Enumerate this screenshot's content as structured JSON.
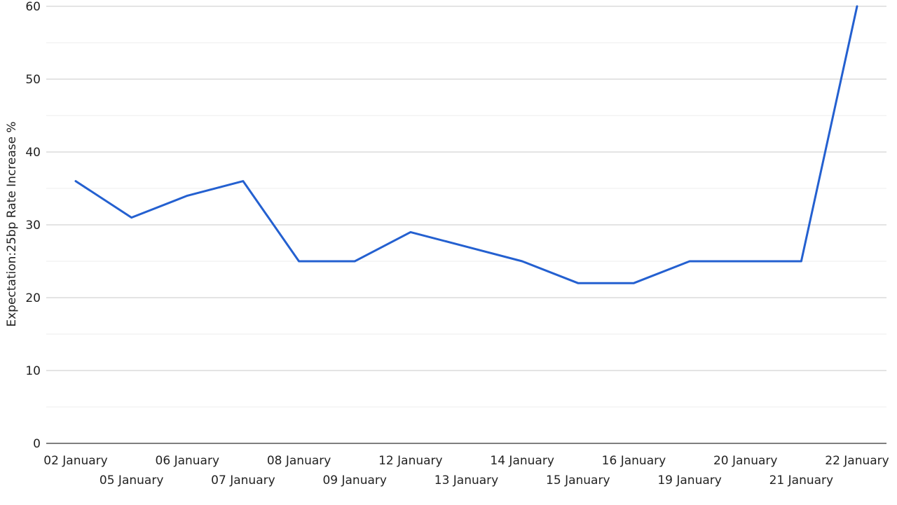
{
  "chart_data": {
    "type": "line",
    "title": "",
    "xlabel": "",
    "ylabel": "Expectation:25bp Rate Increase %",
    "ylim": [
      0,
      60
    ],
    "yticks": [
      "0",
      "10",
      "20",
      "30",
      "40",
      "50",
      "60"
    ],
    "grid": true,
    "categories": [
      "02 January",
      "05 January",
      "06 January",
      "07 January",
      "08 January",
      "09 January",
      "12 January",
      "13 January",
      "14 January",
      "15 January",
      "16 January",
      "19 January",
      "20 January",
      "21 January",
      "22 January"
    ],
    "series": [
      {
        "values": [
          36,
          31,
          34,
          36,
          25,
          25,
          29,
          27,
          25,
          22,
          22,
          25,
          25,
          25,
          60
        ],
        "color": "#2460d0"
      }
    ]
  }
}
